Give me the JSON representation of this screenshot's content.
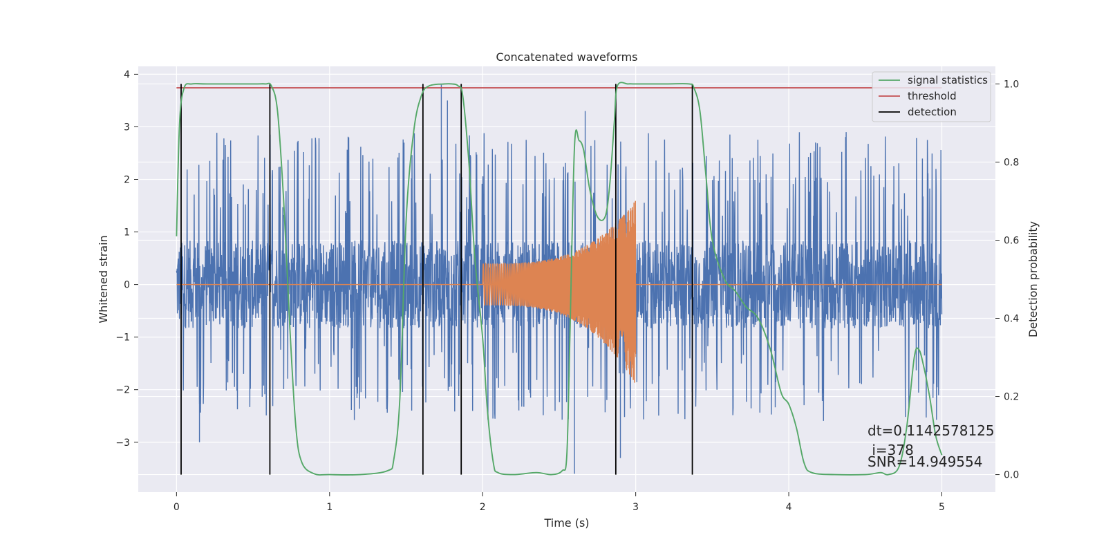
{
  "chart_data": {
    "type": "line",
    "title": "Concatenated waveforms",
    "xlabel": "Time (s)",
    "ylabel_left": "Whitened strain",
    "ylabel_right": "Detection probability",
    "xlim": [
      -0.25,
      5.35
    ],
    "ylim_left": [
      -3.95,
      4.15
    ],
    "ylim_right": [
      -0.045,
      1.045
    ],
    "xticks": [
      0,
      1,
      2,
      3,
      4,
      5
    ],
    "yticks_left": [
      -3,
      -2,
      -1,
      0,
      1,
      2,
      3,
      4
    ],
    "yticks_right": [
      0.0,
      0.2,
      0.4,
      0.6,
      0.8,
      1.0
    ],
    "xtick_labels": [
      "0",
      "1",
      "2",
      "3",
      "4",
      "5"
    ],
    "ytick_labels_left": [
      "−3",
      "−2",
      "−1",
      "0",
      "1",
      "2",
      "3",
      "4"
    ],
    "ytick_labels_right": [
      "0.0",
      "0.2",
      "0.4",
      "0.6",
      "0.8",
      "1.0"
    ],
    "grid": true,
    "legend_position": "top-right",
    "legend": [
      "signal statistics",
      "threshold",
      "detection"
    ],
    "colors": {
      "strain": "#4c72b0",
      "template": "#dd8452",
      "signal_statistics": "#55a868",
      "threshold": "#c44e52",
      "detection": "#000000",
      "axes_bg": "#eaeaf2",
      "grid": "#ffffff"
    },
    "strain_noise": {
      "x_range": [
        0,
        5
      ],
      "core_amplitude": 0.8,
      "typical_peak_range": [
        -2.6,
        2.9
      ],
      "extreme_peaks": [
        {
          "x": 1.73,
          "y": 3.8
        },
        {
          "x": 1.77,
          "y": 3.5
        },
        {
          "x": 2.67,
          "y": 3.3
        },
        {
          "x": 2.87,
          "y": 3.15
        },
        {
          "x": 0.15,
          "y": -3.0
        },
        {
          "x": 2.6,
          "y": -3.6
        },
        {
          "x": 2.9,
          "y": -3.3
        }
      ]
    },
    "template_chirp": {
      "x_start": 2.0,
      "x_end": 3.0,
      "amplitude_start": 0.4,
      "amplitude_end_upper": 1.6,
      "amplitude_end_lower": -1.9,
      "baseline": 0
    },
    "signal_statistics": {
      "name": "signal statistics",
      "x": [
        0.0,
        0.02,
        0.05,
        0.1,
        0.2,
        0.5,
        0.58,
        0.62,
        0.66,
        0.7,
        0.74,
        0.78,
        0.82,
        0.9,
        1.0,
        1.2,
        1.38,
        1.42,
        1.46,
        1.5,
        1.55,
        1.6,
        1.65,
        1.75,
        1.8,
        1.84,
        1.87,
        1.91,
        1.95,
        2.0,
        2.03,
        2.07,
        2.1,
        2.2,
        2.35,
        2.45,
        2.52,
        2.55,
        2.57,
        2.6,
        2.63,
        2.66,
        2.7,
        2.75,
        2.8,
        2.83,
        2.86,
        2.88,
        2.95,
        3.0,
        3.2,
        3.35,
        3.38,
        3.42,
        3.46,
        3.5,
        3.58,
        3.65,
        3.72,
        3.8,
        3.88,
        3.95,
        4.0,
        4.05,
        4.1,
        4.15,
        4.3,
        4.5,
        4.6,
        4.65,
        4.72,
        4.77,
        4.82,
        4.85,
        4.88,
        4.92,
        4.96,
        5.0
      ],
      "y": [
        0.61,
        0.9,
        0.99,
        1.0,
        1.0,
        1.0,
        1.0,
        0.995,
        0.93,
        0.7,
        0.38,
        0.12,
        0.03,
        0.002,
        0.0,
        0.0,
        0.01,
        0.04,
        0.2,
        0.65,
        0.88,
        0.97,
        0.995,
        1.0,
        1.0,
        0.995,
        0.97,
        0.8,
        0.55,
        0.35,
        0.17,
        0.03,
        0.005,
        0.0,
        0.005,
        0.0,
        0.01,
        0.05,
        0.35,
        0.84,
        0.855,
        0.83,
        0.73,
        0.66,
        0.66,
        0.74,
        0.9,
        0.995,
        1.0,
        1.0,
        1.0,
        1.0,
        0.99,
        0.93,
        0.76,
        0.6,
        0.5,
        0.47,
        0.43,
        0.4,
        0.32,
        0.21,
        0.18,
        0.12,
        0.03,
        0.005,
        0.0,
        0.0,
        0.005,
        0.0,
        0.02,
        0.12,
        0.3,
        0.32,
        0.28,
        0.2,
        0.1,
        0.05
      ]
    },
    "threshold": {
      "name": "threshold",
      "value": 0.99,
      "x_range": [
        0,
        5
      ]
    },
    "detections": {
      "name": "detection",
      "x": [
        0.03,
        0.61,
        1.61,
        1.86,
        2.87,
        3.37
      ],
      "y_range": [
        0,
        1
      ]
    },
    "annotations": {
      "dt": "dt=0.1142578125",
      "i": " i=378",
      "snr": "SNR=14.949554"
    }
  }
}
